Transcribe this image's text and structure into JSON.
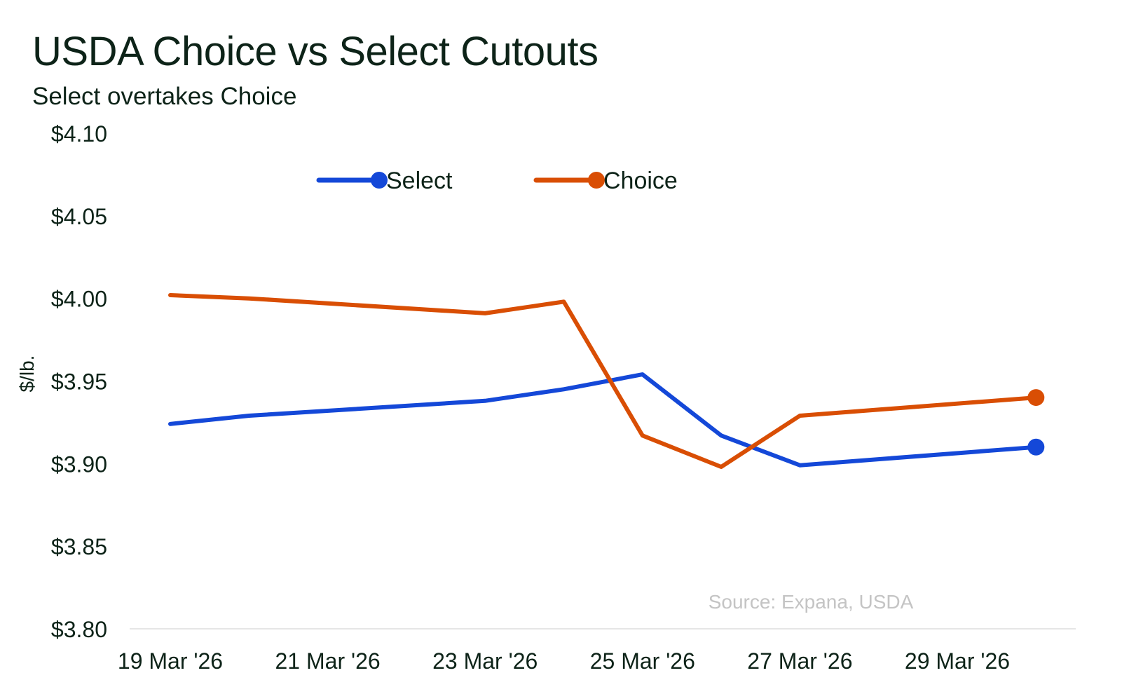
{
  "chart_data": {
    "type": "line",
    "title": "USDA Choice vs Select Cutouts",
    "subtitle": "Select overtakes Choice",
    "xlabel": "",
    "ylabel": "$/lb.",
    "source": "Source: Expana, USDA",
    "ylim": [
      3.8,
      4.1
    ],
    "yticks": [
      3.8,
      3.85,
      3.9,
      3.95,
      4.0,
      4.05,
      4.1
    ],
    "ytick_labels": [
      "$3.80",
      "$3.85",
      "$3.90",
      "$3.95",
      "$4.00",
      "$4.05",
      "$4.10"
    ],
    "xticks": [
      19,
      21,
      23,
      25,
      27,
      29
    ],
    "xtick_labels": [
      "19 Mar '26",
      "21 Mar '26",
      "23 Mar '26",
      "25 Mar '26",
      "27 Mar '26",
      "29 Mar '26"
    ],
    "x": [
      19,
      20,
      23,
      24,
      25,
      26,
      27,
      30
    ],
    "legend_position": "top-center",
    "grid": false,
    "series": [
      {
        "name": "Select",
        "color": "#1448d8",
        "values": [
          3.924,
          3.929,
          3.938,
          3.945,
          3.954,
          3.917,
          3.899,
          3.91
        ]
      },
      {
        "name": "Choice",
        "color": "#d94e04",
        "values": [
          4.002,
          4.0,
          3.991,
          3.998,
          3.917,
          3.898,
          3.929,
          3.94
        ]
      }
    ]
  }
}
